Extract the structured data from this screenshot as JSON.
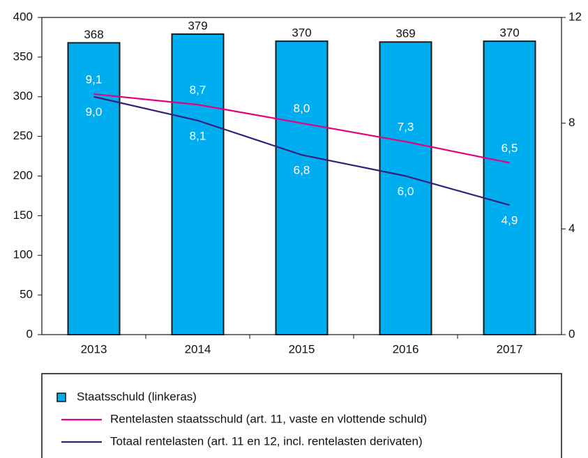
{
  "chart_data": {
    "type": "bar",
    "categories": [
      "2013",
      "2014",
      "2015",
      "2016",
      "2017"
    ],
    "ylim": [
      0,
      400
    ],
    "yticks": [
      0,
      50,
      100,
      150,
      200,
      250,
      300,
      350,
      400
    ],
    "y2lim": [
      0,
      12
    ],
    "y2ticks": [
      0,
      4,
      8,
      12
    ],
    "series": [
      {
        "name": "Staatsschuld (linkeras)",
        "type": "bar",
        "color": "#00aeef",
        "values": [
          368,
          379,
          370,
          369,
          370
        ]
      },
      {
        "name": "Rentelasten staatsschuld (art. 11, vaste en vlottende schuld)",
        "type": "line",
        "axis": "y2",
        "color": "#e6007e",
        "values": [
          9.1,
          8.7,
          8.0,
          7.3,
          6.5
        ],
        "value_labels": [
          "9,1",
          "8,7",
          "8,0",
          "7,3",
          "6,5"
        ]
      },
      {
        "name": "Totaal rentelasten (art. 11 en 12, incl. rentelasten derivaten)",
        "type": "line",
        "axis": "y2",
        "color": "#3b1c7a",
        "values": [
          9.0,
          8.1,
          6.8,
          6.0,
          4.9
        ],
        "value_labels": [
          "9,0",
          "8,1",
          "6,8",
          "6,0",
          "4,9"
        ]
      }
    ]
  }
}
